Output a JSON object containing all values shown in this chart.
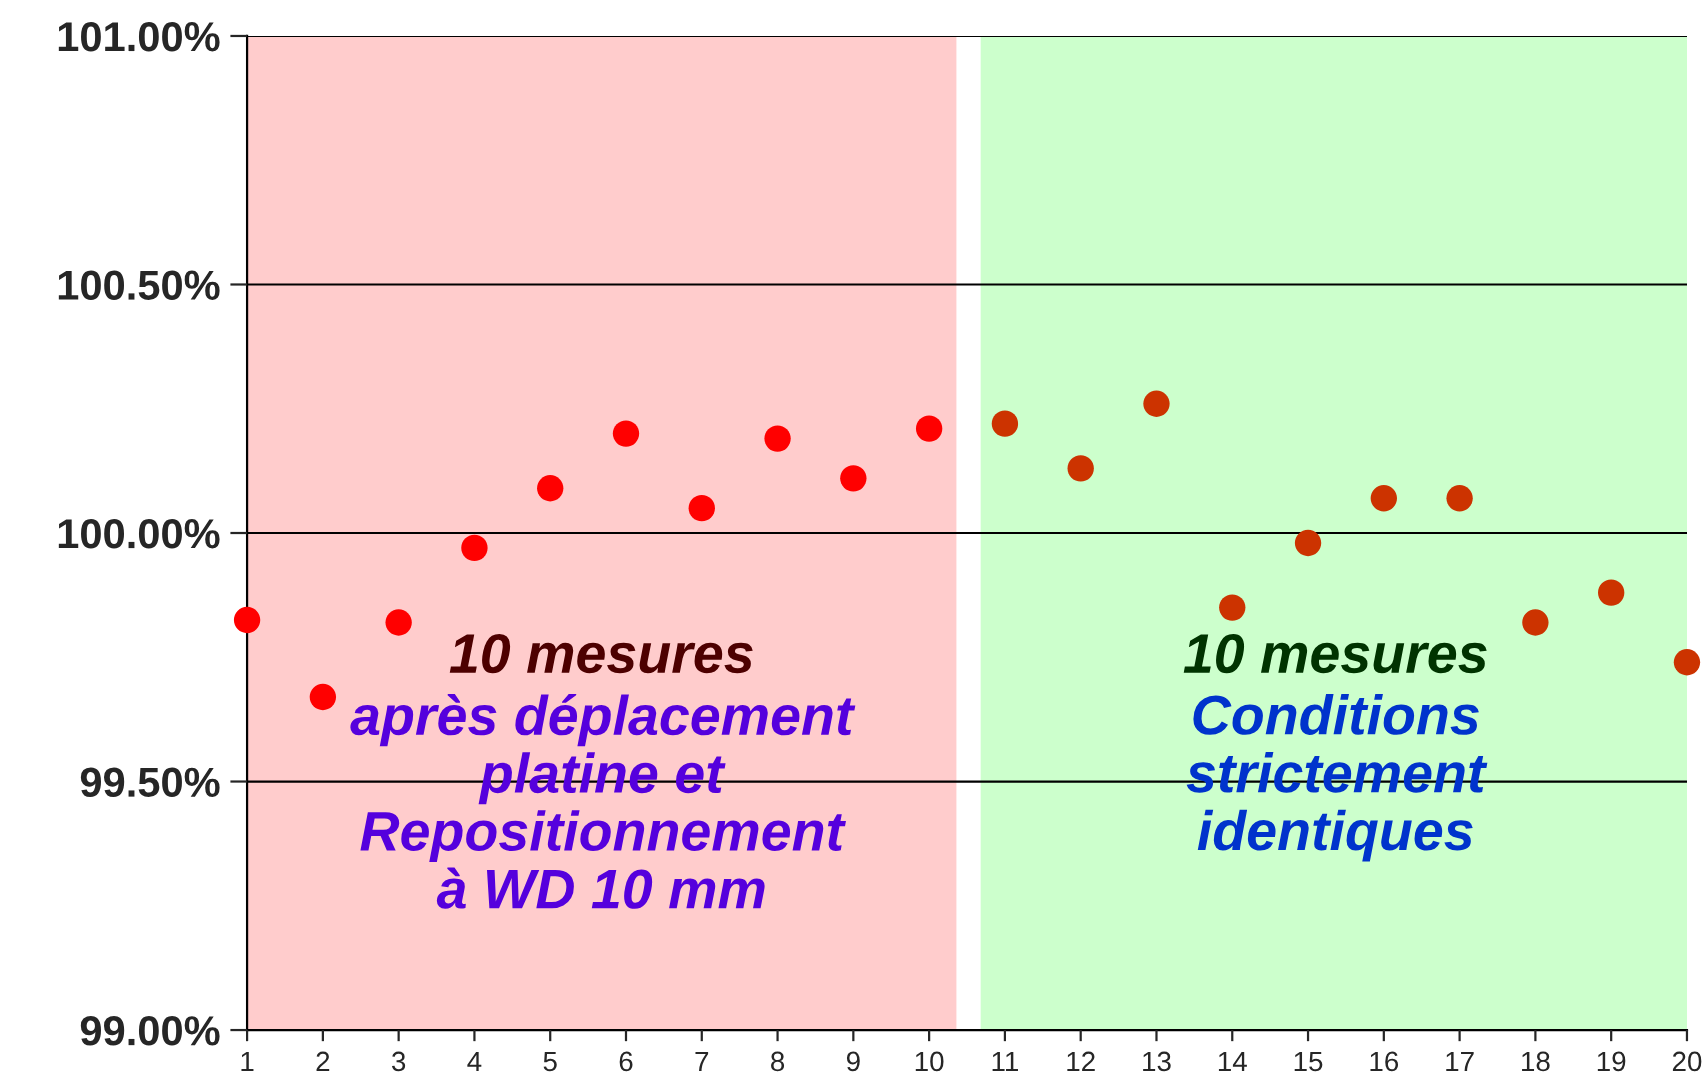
{
  "chart_data": {
    "type": "scatter",
    "x": [
      1,
      2,
      3,
      4,
      5,
      6,
      7,
      8,
      9,
      10,
      11,
      12,
      13,
      14,
      15,
      16,
      17,
      18,
      19,
      20
    ],
    "values": [
      99.825,
      99.67,
      99.82,
      99.97,
      100.09,
      100.2,
      100.05,
      100.19,
      100.11,
      100.21,
      100.22,
      100.13,
      100.26,
      99.85,
      99.98,
      100.07,
      100.07,
      99.82,
      99.88,
      99.74
    ],
    "colors": [
      "#ff0000",
      "#ff0000",
      "#ff0000",
      "#ff0000",
      "#ff0000",
      "#ff0000",
      "#ff0000",
      "#ff0000",
      "#ff0000",
      "#ff0000",
      "#cc3300",
      "#cc3300",
      "#cc3300",
      "#cc3300",
      "#cc3300",
      "#cc3300",
      "#cc3300",
      "#cc3300",
      "#cc3300",
      "#cc3300"
    ],
    "marker": "circle",
    "xlim": [
      1,
      20
    ],
    "xticks": [
      1,
      2,
      3,
      4,
      5,
      6,
      7,
      8,
      9,
      10,
      11,
      12,
      13,
      14,
      15,
      16,
      17,
      18,
      19,
      20
    ],
    "ylim": [
      99.0,
      101.0
    ],
    "yticks": [
      {
        "value": 99.0,
        "label": "99.00%"
      },
      {
        "value": 99.5,
        "label": "99.50%"
      },
      {
        "value": 100.0,
        "label": "100.00%"
      },
      {
        "value": 100.5,
        "label": "100.50%"
      },
      {
        "value": 101.0,
        "label": "101.00%"
      }
    ],
    "grid": "y",
    "bands": [
      {
        "axis": "x",
        "from": 1,
        "to": 10.36,
        "color": "#ffcccc",
        "label": "10 mesures\naprès déplacement\nplatine et\nRepositionnement\nà WD 10 mm"
      },
      {
        "axis": "x",
        "from": 10.68,
        "to": 20.05,
        "color": "#ccffcc",
        "label": "10 mesures\nConditions\nstrictement\nidentiques"
      }
    ]
  }
}
